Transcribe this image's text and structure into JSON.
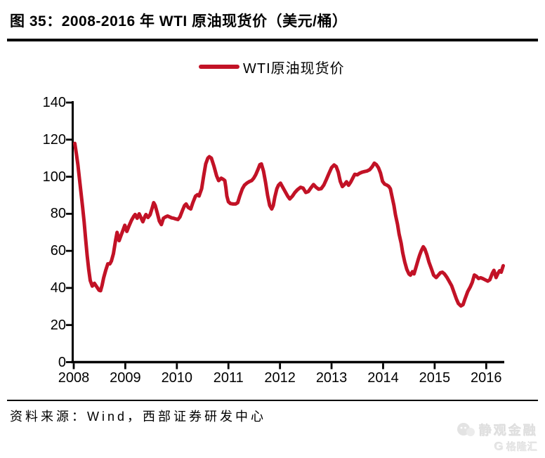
{
  "figure": {
    "number_title": "图 35：2008-2016 年 WTI 原油现货价（美元/桶）",
    "source_note": "资料来源：Wind，西部证券研发中心"
  },
  "legend": {
    "label": "WTI原油现货价"
  },
  "watermark": {
    "brand": "静观金融",
    "logo_letter": "G",
    "logo_text": "格隆汇"
  },
  "colors": {
    "series_red": "#C21226",
    "axis_black": "#000000"
  },
  "chart_data": {
    "type": "line",
    "title": "2008-2016 年 WTI 原油现货价（美元/桶）",
    "unit": "美元/桶",
    "xlabel": "",
    "ylabel": "",
    "grid": false,
    "legend_position": "top-center",
    "xlim": [
      2008,
      2016.35
    ],
    "ylim": [
      0,
      140
    ],
    "x_ticks": [
      2008,
      2009,
      2010,
      2011,
      2012,
      2013,
      2014,
      2015,
      2016
    ],
    "y_ticks": [
      0,
      20,
      40,
      60,
      80,
      100,
      120,
      140
    ],
    "series": [
      {
        "name": "WTI原油现货价",
        "color": "#C21226",
        "points": [
          [
            2008.02,
            118
          ],
          [
            2008.05,
            112.5
          ],
          [
            2008.08,
            106.5
          ],
          [
            2008.11,
            99
          ],
          [
            2008.14,
            91.5
          ],
          [
            2008.17,
            84
          ],
          [
            2008.2,
            76
          ],
          [
            2008.23,
            66.5
          ],
          [
            2008.26,
            57.5
          ],
          [
            2008.29,
            50
          ],
          [
            2008.32,
            44
          ],
          [
            2008.36,
            41
          ],
          [
            2008.4,
            42.5
          ],
          [
            2008.45,
            40.5
          ],
          [
            2008.49,
            38.8
          ],
          [
            2008.52,
            38.5
          ],
          [
            2008.55,
            41.5
          ],
          [
            2008.58,
            45.5
          ],
          [
            2008.62,
            49.5
          ],
          [
            2008.66,
            53
          ],
          [
            2008.7,
            53
          ],
          [
            2008.73,
            54.5
          ],
          [
            2008.77,
            58.5
          ],
          [
            2008.81,
            65.5
          ],
          [
            2008.84,
            70
          ],
          [
            2008.88,
            65.5
          ],
          [
            2008.92,
            68.5
          ],
          [
            2008.96,
            71.5
          ],
          [
            2008.99,
            73.8
          ],
          [
            2009.03,
            70.5
          ],
          [
            2009.08,
            74
          ],
          [
            2009.12,
            76.5
          ],
          [
            2009.16,
            78.5
          ],
          [
            2009.19,
            79.6
          ],
          [
            2009.23,
            77.6
          ],
          [
            2009.27,
            80
          ],
          [
            2009.31,
            77.5
          ],
          [
            2009.34,
            75.7
          ],
          [
            2009.38,
            78.5
          ],
          [
            2009.4,
            79.6
          ],
          [
            2009.44,
            78
          ],
          [
            2009.48,
            79.5
          ],
          [
            2009.52,
            83
          ],
          [
            2009.55,
            86
          ],
          [
            2009.58,
            84.5
          ],
          [
            2009.62,
            80.5
          ],
          [
            2009.66,
            76.1
          ],
          [
            2009.7,
            74.2
          ],
          [
            2009.74,
            77.6
          ],
          [
            2009.78,
            78.3
          ],
          [
            2009.82,
            78.8
          ],
          [
            2009.86,
            78.3
          ],
          [
            2009.9,
            77.8
          ],
          [
            2009.94,
            77.6
          ],
          [
            2009.98,
            77.2
          ],
          [
            2010.02,
            76.9
          ],
          [
            2010.06,
            78.3
          ],
          [
            2010.11,
            81.9
          ],
          [
            2010.15,
            84.5
          ],
          [
            2010.18,
            85.3
          ],
          [
            2010.22,
            83.4
          ],
          [
            2010.27,
            82.6
          ],
          [
            2010.31,
            86
          ],
          [
            2010.36,
            89.5
          ],
          [
            2010.4,
            90.3
          ],
          [
            2010.43,
            89.6
          ],
          [
            2010.48,
            93.5
          ],
          [
            2010.52,
            100.5
          ],
          [
            2010.56,
            106.9
          ],
          [
            2010.6,
            110
          ],
          [
            2010.63,
            110.8
          ],
          [
            2010.67,
            110
          ],
          [
            2010.72,
            105.6
          ],
          [
            2010.77,
            100.5
          ],
          [
            2010.81,
            97.9
          ],
          [
            2010.86,
            99.2
          ],
          [
            2010.9,
            98.6
          ],
          [
            2010.93,
            97.9
          ],
          [
            2010.95,
            94.1
          ],
          [
            2010.97,
            89.6
          ],
          [
            2011.0,
            86.5
          ],
          [
            2011.04,
            85.5
          ],
          [
            2011.09,
            85.3
          ],
          [
            2011.14,
            85.3
          ],
          [
            2011.18,
            86
          ],
          [
            2011.22,
            89.6
          ],
          [
            2011.27,
            93.5
          ],
          [
            2011.31,
            95.4
          ],
          [
            2011.36,
            96.6
          ],
          [
            2011.4,
            97.3
          ],
          [
            2011.45,
            97.9
          ],
          [
            2011.49,
            99.2
          ],
          [
            2011.53,
            101.1
          ],
          [
            2011.57,
            103.7
          ],
          [
            2011.61,
            106.5
          ],
          [
            2011.64,
            106.9
          ],
          [
            2011.68,
            103
          ],
          [
            2011.72,
            97
          ],
          [
            2011.76,
            90
          ],
          [
            2011.8,
            84.5
          ],
          [
            2011.84,
            82.6
          ],
          [
            2011.87,
            84.5
          ],
          [
            2011.9,
            89
          ],
          [
            2011.94,
            93.5
          ],
          [
            2011.97,
            95.4
          ],
          [
            2012.01,
            96.5
          ],
          [
            2012.05,
            94.5
          ],
          [
            2012.1,
            92
          ],
          [
            2012.15,
            89.5
          ],
          [
            2012.19,
            88
          ],
          [
            2012.24,
            89.5
          ],
          [
            2012.29,
            91.5
          ],
          [
            2012.34,
            93
          ],
          [
            2012.4,
            94.3
          ],
          [
            2012.45,
            93.8
          ],
          [
            2012.5,
            91.5
          ],
          [
            2012.55,
            92
          ],
          [
            2012.6,
            94
          ],
          [
            2012.65,
            95.8
          ],
          [
            2012.7,
            94.3
          ],
          [
            2012.75,
            93.3
          ],
          [
            2012.8,
            93.6
          ],
          [
            2012.85,
            95.5
          ],
          [
            2012.9,
            98.5
          ],
          [
            2012.95,
            101.8
          ],
          [
            2013.0,
            104.9
          ],
          [
            2013.05,
            106.3
          ],
          [
            2013.09,
            105.5
          ],
          [
            2013.13,
            102.5
          ],
          [
            2013.17,
            97.5
          ],
          [
            2013.21,
            94.7
          ],
          [
            2013.25,
            95.8
          ],
          [
            2013.29,
            97.3
          ],
          [
            2013.33,
            95.4
          ],
          [
            2013.37,
            97
          ],
          [
            2013.41,
            99.2
          ],
          [
            2013.45,
            101.3
          ],
          [
            2013.5,
            101
          ],
          [
            2013.54,
            101.8
          ],
          [
            2013.59,
            102.4
          ],
          [
            2013.64,
            102.8
          ],
          [
            2013.69,
            103.1
          ],
          [
            2013.74,
            103.8
          ],
          [
            2013.79,
            105.5
          ],
          [
            2013.83,
            107.3
          ],
          [
            2013.87,
            106.5
          ],
          [
            2013.91,
            104.8
          ],
          [
            2013.95,
            102
          ],
          [
            2013.99,
            97.5
          ],
          [
            2014.03,
            96
          ],
          [
            2014.07,
            95.5
          ],
          [
            2014.11,
            94.8
          ],
          [
            2014.14,
            93.5
          ],
          [
            2014.17,
            89.6
          ],
          [
            2014.21,
            84.5
          ],
          [
            2014.24,
            79.4
          ],
          [
            2014.28,
            74.3
          ],
          [
            2014.31,
            69.2
          ],
          [
            2014.35,
            64.1
          ],
          [
            2014.38,
            59
          ],
          [
            2014.42,
            54
          ],
          [
            2014.46,
            50.1
          ],
          [
            2014.5,
            47.6
          ],
          [
            2014.53,
            46.9
          ],
          [
            2014.57,
            48.8
          ],
          [
            2014.6,
            47.6
          ],
          [
            2014.64,
            51.4
          ],
          [
            2014.68,
            55.2
          ],
          [
            2014.71,
            57.8
          ],
          [
            2014.74,
            60
          ],
          [
            2014.78,
            62.2
          ],
          [
            2014.81,
            61
          ],
          [
            2014.85,
            57.8
          ],
          [
            2014.89,
            53.9
          ],
          [
            2014.94,
            50.1
          ],
          [
            2014.98,
            46.9
          ],
          [
            2015.03,
            45.6
          ],
          [
            2015.07,
            46.9
          ],
          [
            2015.11,
            48.2
          ],
          [
            2015.15,
            48.5
          ],
          [
            2015.19,
            47.6
          ],
          [
            2015.24,
            45.6
          ],
          [
            2015.28,
            43.7
          ],
          [
            2015.33,
            41.2
          ],
          [
            2015.37,
            38
          ],
          [
            2015.42,
            34.2
          ],
          [
            2015.46,
            31.6
          ],
          [
            2015.51,
            30.3
          ],
          [
            2015.55,
            31
          ],
          [
            2015.59,
            34.2
          ],
          [
            2015.64,
            38
          ],
          [
            2015.69,
            40.5
          ],
          [
            2015.73,
            43.1
          ],
          [
            2015.77,
            47
          ],
          [
            2015.81,
            46.3
          ],
          [
            2015.85,
            45.1
          ],
          [
            2015.89,
            45.5
          ],
          [
            2015.93,
            45.1
          ],
          [
            2015.98,
            44.4
          ],
          [
            2016.03,
            43.7
          ],
          [
            2016.07,
            44.4
          ],
          [
            2016.12,
            48
          ],
          [
            2016.15,
            49.5
          ],
          [
            2016.19,
            45.6
          ],
          [
            2016.23,
            48
          ],
          [
            2016.26,
            49.3
          ],
          [
            2016.29,
            48.5
          ],
          [
            2016.33,
            52
          ]
        ]
      }
    ]
  }
}
